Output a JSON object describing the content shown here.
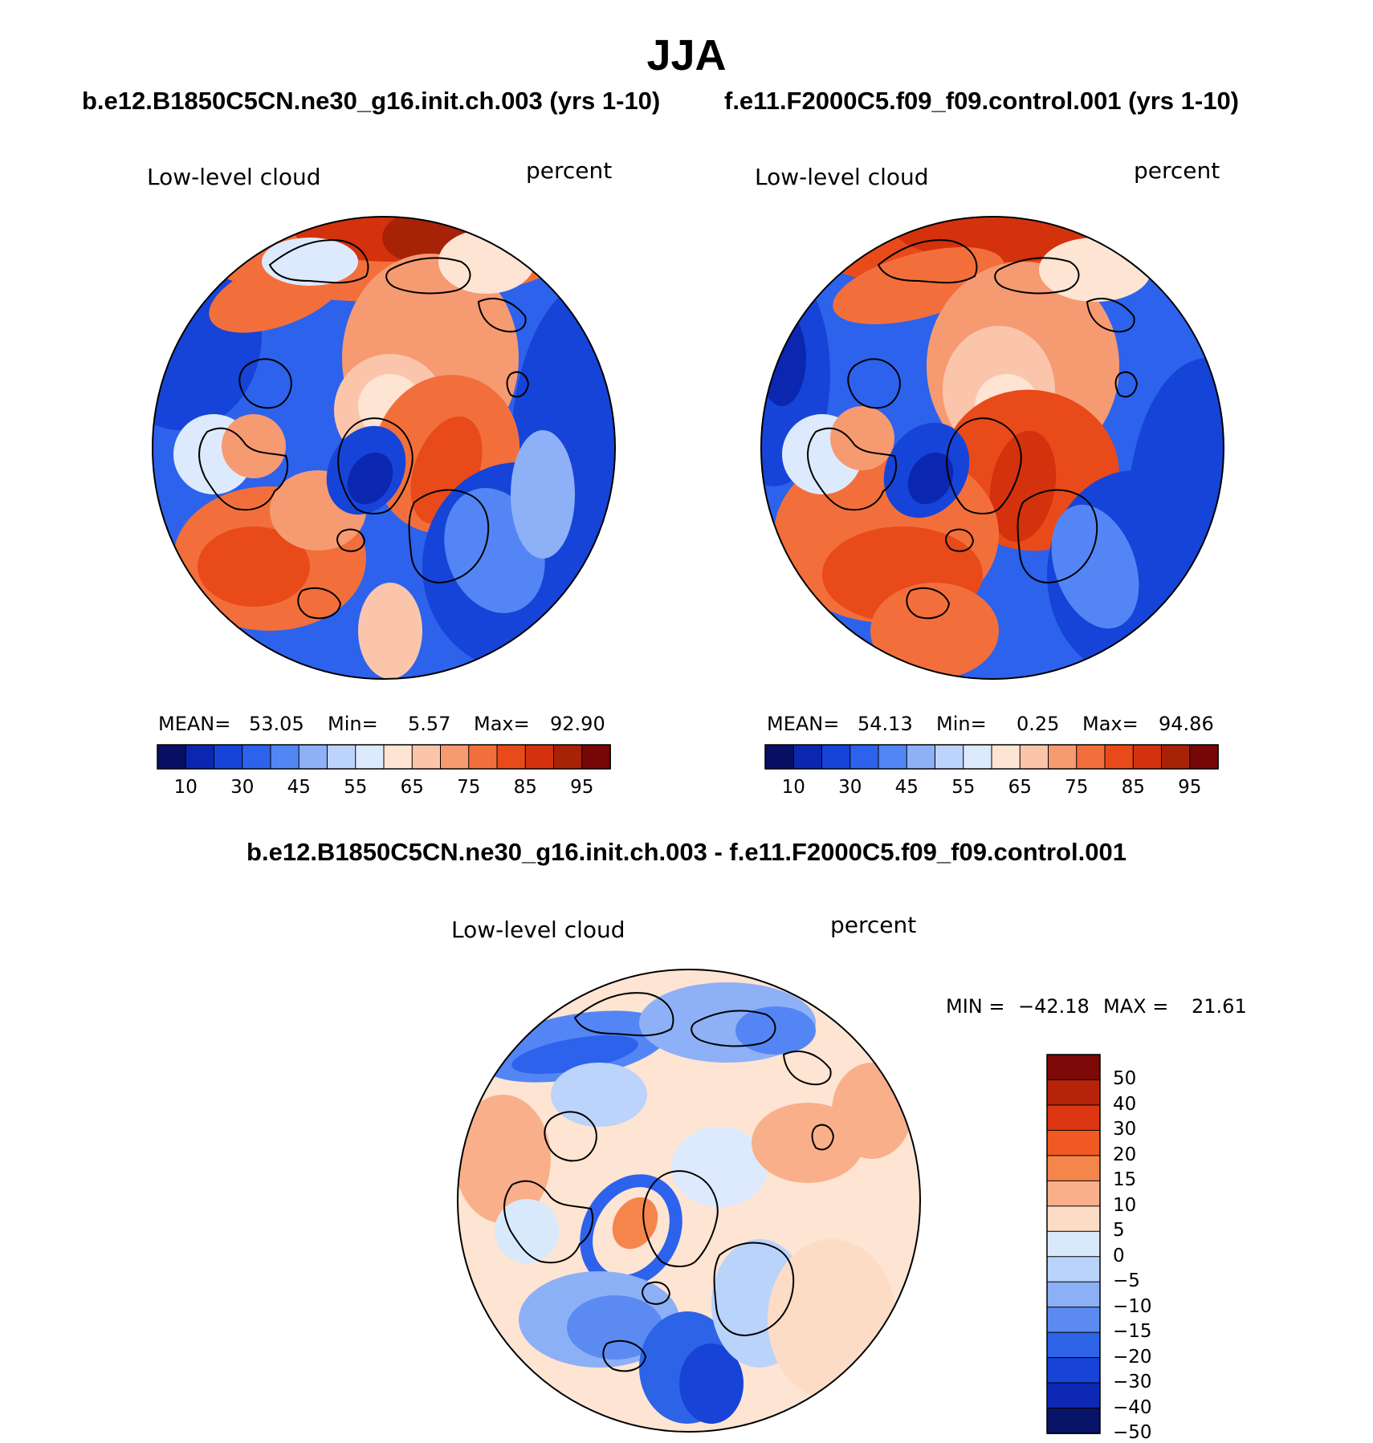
{
  "title": "JJA",
  "variable": "Low-level cloud",
  "units": "percent",
  "panels": [
    {
      "case_title": "b.e12.B1850C5CN.ne30_g16.init.ch.003 (yrs 1-10)",
      "mean_label": "MEAN=",
      "mean_value": "53.05",
      "min_label": "Min=",
      "min_value": "5.57",
      "max_label": "Max=",
      "max_value": "92.90"
    },
    {
      "case_title": "f.e11.F2000C5.f09_f09.control.001 (yrs 1-10)",
      "mean_label": "MEAN=",
      "mean_value": "54.13",
      "min_label": "Min=",
      "min_value": "0.25",
      "max_label": "Max=",
      "max_value": "94.86"
    }
  ],
  "diff": {
    "title": "b.e12.B1850C5CN.ne30_g16.init.ch.003 - f.e11.F2000C5.f09_f09.control.001",
    "min_label": "MIN =",
    "min_value": "−42.18",
    "max_label": "MAX =",
    "max_value": "21.61"
  },
  "colorbar_main": {
    "colors": [
      "#081063",
      "#0b27b0",
      "#1644d8",
      "#2d62ec",
      "#5386f4",
      "#8eb0f6",
      "#bcd3fb",
      "#ddeafd",
      "#fde4d3",
      "#fbc5ac",
      "#f69a72",
      "#f26f3c",
      "#e94a1a",
      "#d3320d",
      "#a82208",
      "#780707"
    ],
    "tick_labels": [
      "10",
      "30",
      "45",
      "55",
      "65",
      "75",
      "85",
      "95"
    ]
  },
  "colorbar_diff": {
    "colors": [
      "#7c0808",
      "#b62308",
      "#dc3712",
      "#f05a22",
      "#f6854c",
      "#f9b08a",
      "#fddcc5",
      "#d9e9fc",
      "#b9d3fa",
      "#8cb0f6",
      "#5b8bf0",
      "#2d63e6",
      "#1743d6",
      "#0c28b4",
      "#081468"
    ],
    "tick_labels": [
      "50",
      "40",
      "30",
      "20",
      "15",
      "10",
      "5",
      "0",
      "−5",
      "−10",
      "−15",
      "−20",
      "−30",
      "−40",
      "−50"
    ]
  }
}
